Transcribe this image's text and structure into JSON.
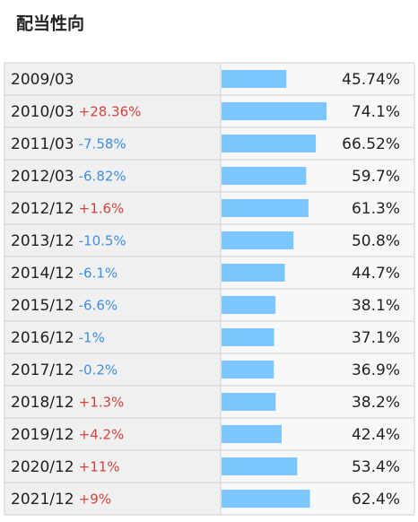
{
  "chart_data": {
    "type": "bar",
    "orientation": "horizontal",
    "title": "配当性向",
    "categories": [
      "2009/03",
      "2010/03",
      "2011/03",
      "2012/03",
      "2012/12",
      "2013/12",
      "2014/12",
      "2015/12",
      "2016/12",
      "2017/12",
      "2018/12",
      "2019/12",
      "2020/12",
      "2021/12"
    ],
    "values": [
      45.74,
      74.1,
      66.52,
      59.7,
      61.3,
      50.8,
      44.7,
      38.1,
      37.1,
      36.9,
      38.2,
      42.4,
      53.4,
      62.4
    ],
    "value_labels": [
      "45.74%",
      "74.1%",
      "66.52%",
      "59.7%",
      "61.3%",
      "50.8%",
      "44.7%",
      "38.1%",
      "37.1%",
      "36.9%",
      "38.2%",
      "42.4%",
      "53.4%",
      "62.4%"
    ],
    "changes": [
      null,
      {
        "value": 28.36,
        "label": "+28.36%"
      },
      {
        "value": -7.58,
        "label": "-7.58%"
      },
      {
        "value": -6.82,
        "label": "-6.82%"
      },
      {
        "value": 1.6,
        "label": "+1.6%"
      },
      {
        "value": -10.5,
        "label": "-10.5%"
      },
      {
        "value": -6.1,
        "label": "-6.1%"
      },
      {
        "value": -6.6,
        "label": "-6.6%"
      },
      {
        "value": -1,
        "label": "-1%"
      },
      {
        "value": -0.2,
        "label": "-0.2%"
      },
      {
        "value": 1.3,
        "label": "+1.3%"
      },
      {
        "value": 4.2,
        "label": "+4.2%"
      },
      {
        "value": 11,
        "label": "+11%"
      },
      {
        "value": 9,
        "label": "+9%"
      }
    ],
    "color": "#7cc7ff",
    "positive_color": "#d2443c",
    "negative_color": "#3d8fe0"
  }
}
